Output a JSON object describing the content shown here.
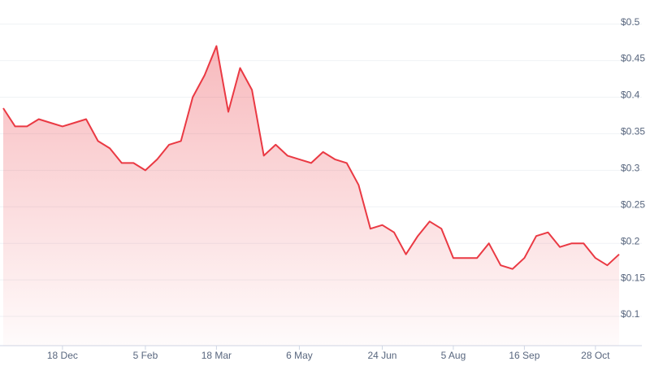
{
  "chart_data": {
    "type": "area",
    "categories": [
      null,
      null,
      null,
      null,
      null,
      "18 Dec",
      null,
      null,
      null,
      null,
      null,
      null,
      "5 Feb",
      null,
      null,
      null,
      null,
      null,
      "18 Mar",
      null,
      null,
      null,
      null,
      null,
      null,
      "6 May",
      null,
      null,
      null,
      null,
      null,
      null,
      "24 Jun",
      null,
      null,
      null,
      null,
      null,
      "5 Aug",
      null,
      null,
      null,
      null,
      null,
      "16 Sep",
      null,
      null,
      null,
      null,
      null,
      "28 Oct",
      null,
      null
    ],
    "series": [
      {
        "color": "#ea3943",
        "values": [
          0.385,
          0.36,
          0.36,
          0.37,
          0.365,
          0.36,
          0.365,
          0.37,
          0.34,
          0.33,
          0.31,
          0.31,
          0.3,
          0.315,
          0.335,
          0.34,
          0.4,
          0.43,
          0.47,
          0.38,
          0.44,
          0.41,
          0.32,
          0.335,
          0.32,
          0.315,
          0.31,
          0.325,
          0.315,
          0.31,
          0.28,
          0.22,
          0.225,
          0.215,
          0.185,
          0.21,
          0.23,
          0.22,
          0.18,
          0.18,
          0.18,
          0.2,
          0.17,
          0.165,
          0.18,
          0.21,
          0.215,
          0.195,
          0.2,
          0.2,
          0.18,
          0.17,
          0.185
        ]
      }
    ],
    "ylim": [
      0.06,
      0.533
    ],
    "yticks": [
      {
        "value": 0.1,
        "label": "$0.1"
      },
      {
        "value": 0.15,
        "label": "$0.15"
      },
      {
        "value": 0.2,
        "label": "$0.2"
      },
      {
        "value": 0.25,
        "label": "$0.25"
      },
      {
        "value": 0.3,
        "label": "$0.3"
      },
      {
        "value": 0.35,
        "label": "$0.35"
      },
      {
        "value": 0.4,
        "label": "$0.4"
      },
      {
        "value": 0.45,
        "label": "$0.45"
      },
      {
        "value": 0.5,
        "label": "$0.5"
      }
    ],
    "grid": true
  }
}
